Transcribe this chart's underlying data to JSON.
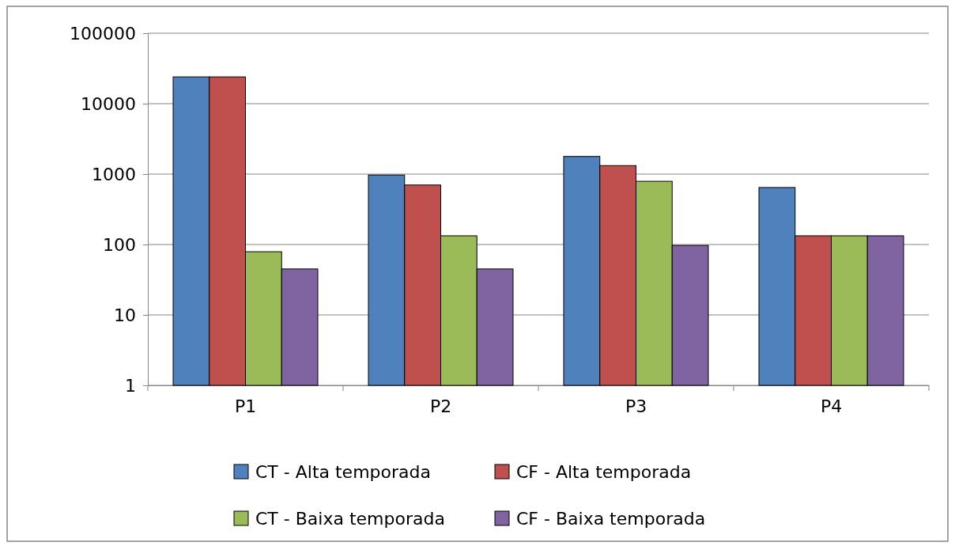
{
  "chart_data": {
    "type": "bar",
    "categories": [
      "P1",
      "P2",
      "P3",
      "P4"
    ],
    "series": [
      {
        "name": "CT - Alta temporada",
        "color": "#4f81bd",
        "values": [
          24000,
          970,
          1780,
          645
        ]
      },
      {
        "name": "CF - Alta temporada",
        "color": "#c0504d",
        "values": [
          24000,
          700,
          1320,
          133
        ]
      },
      {
        "name": "CT - Baixa temporada",
        "color": "#9bbb59",
        "values": [
          79,
          133,
          790,
          133
        ]
      },
      {
        "name": "CF - Baixa temporada",
        "color": "#8064a2",
        "values": [
          45,
          45,
          97,
          133
        ]
      }
    ],
    "log": true,
    "ylim": [
      1,
      100000
    ],
    "yticks": [
      1,
      10,
      100,
      1000,
      10000,
      100000
    ],
    "grid": "y",
    "legend": "bottom"
  }
}
